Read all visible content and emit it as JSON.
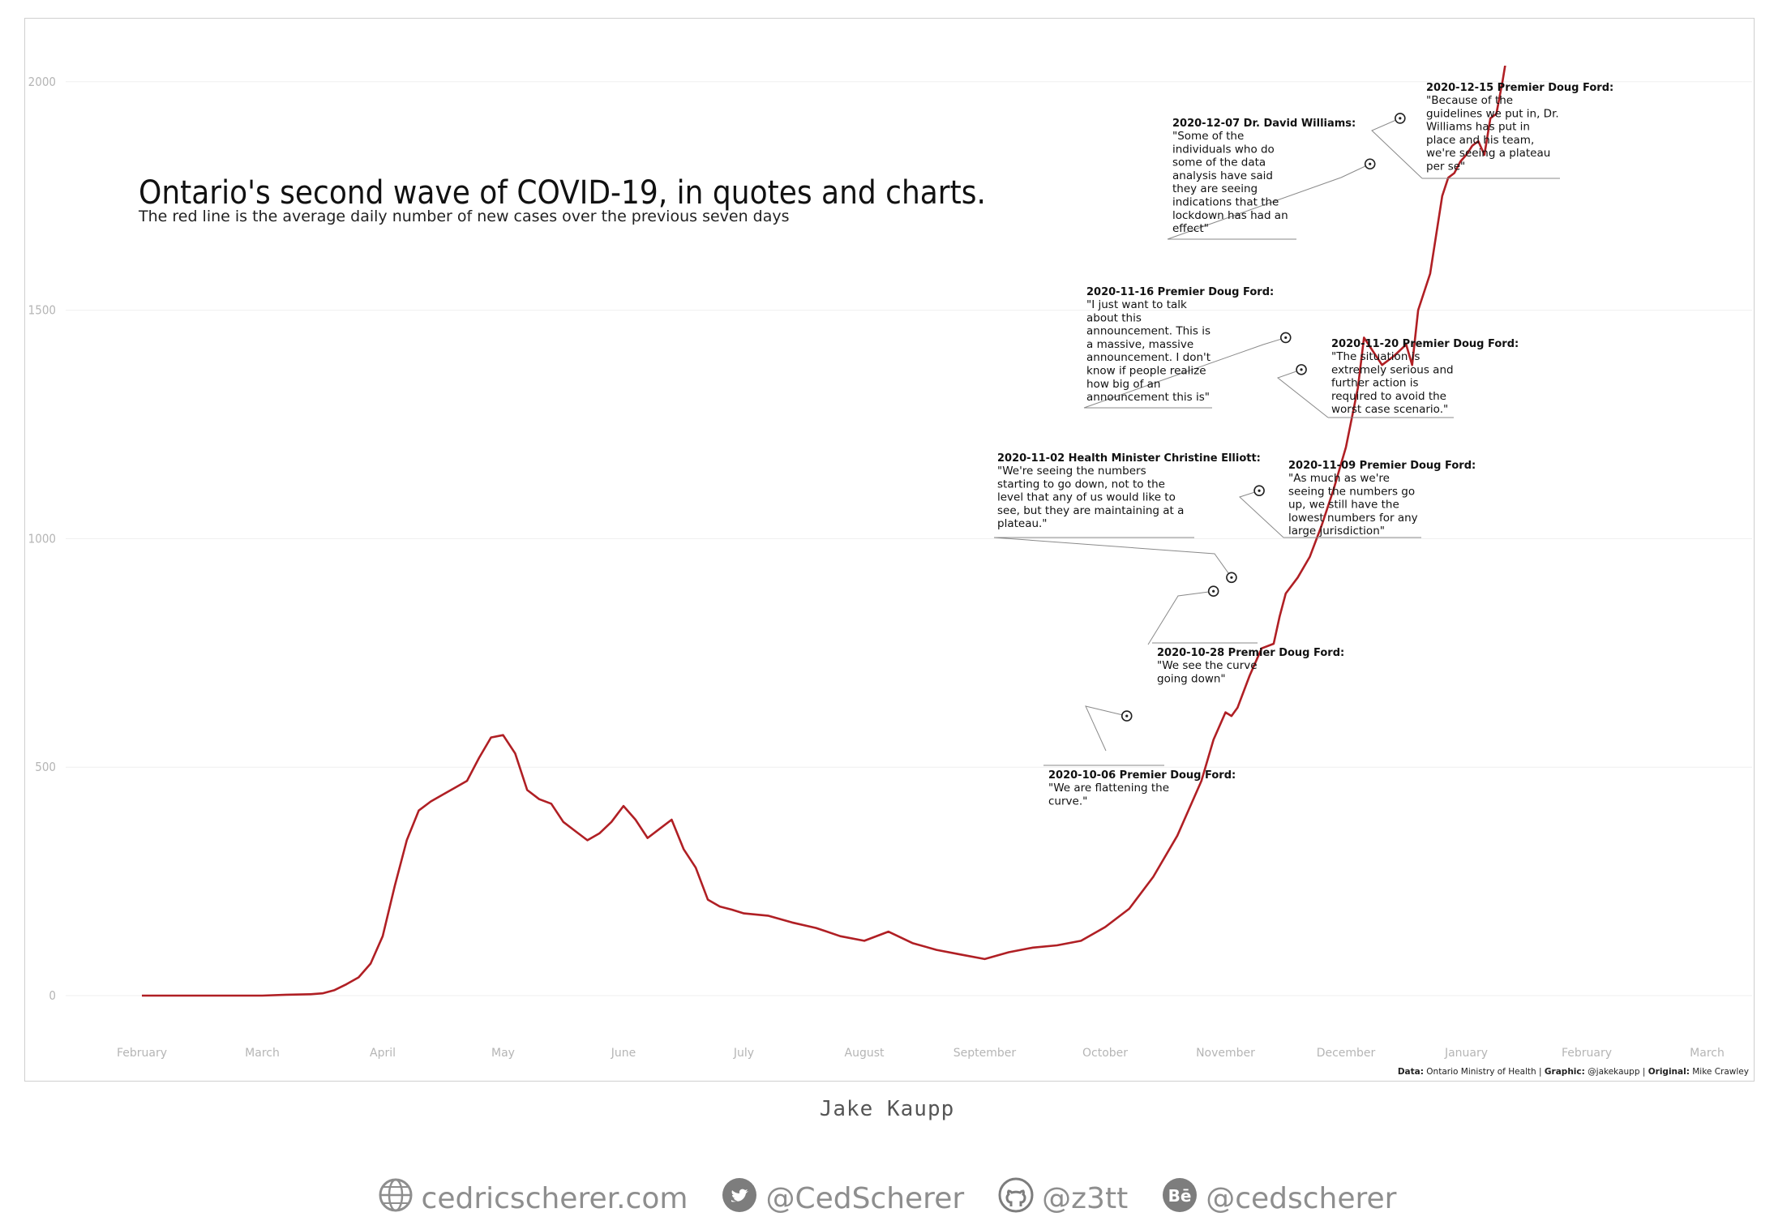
{
  "chart_data": {
    "type": "line",
    "title": "Ontario's second wave of COVID-19, in quotes and charts.",
    "subtitle": "The red line is the average daily number of new cases over the previous seven days",
    "line_color": "#b01f24",
    "y_ticks": [
      0,
      500,
      1000,
      1500,
      2000
    ],
    "ylim": [
      -130,
      2130
    ],
    "x_tick_labels": [
      "February",
      "March",
      "April",
      "May",
      "June",
      "July",
      "August",
      "September",
      "October",
      "November",
      "December",
      "January",
      "February",
      "March"
    ],
    "x_range_months": [
      0,
      13.45
    ],
    "grid": true,
    "series": [
      {
        "x": [
          0.0,
          0.5,
          1.0,
          1.2,
          1.4,
          1.5,
          1.6,
          1.7,
          1.8,
          1.9,
          2.0,
          2.1,
          2.2,
          2.3,
          2.4,
          2.5,
          2.6,
          2.7,
          2.8,
          2.9,
          3.0,
          3.1,
          3.2,
          3.3,
          3.4,
          3.5,
          3.6,
          3.7,
          3.8,
          3.9,
          4.0,
          4.1,
          4.2,
          4.3,
          4.4,
          4.5,
          4.6,
          4.7,
          4.8,
          4.9,
          5.0,
          5.2,
          5.4,
          5.6,
          5.8,
          6.0,
          6.2,
          6.4,
          6.6,
          6.8,
          7.0,
          7.2,
          7.4,
          7.6,
          7.8,
          8.0,
          8.2,
          8.4,
          8.6,
          8.8,
          8.9,
          9.0,
          9.05,
          9.1,
          9.2,
          9.3,
          9.4,
          9.45,
          9.5,
          9.6,
          9.7,
          9.8,
          9.9,
          10.0,
          10.1,
          10.15,
          10.2,
          10.3,
          10.4,
          10.5,
          10.55,
          10.6,
          10.7,
          10.8,
          10.85,
          10.9,
          10.95,
          11.0,
          11.05,
          11.1,
          11.15,
          11.2,
          11.25,
          11.3,
          11.35,
          11.4,
          11.45,
          11.5,
          11.55
        ],
        "y": [
          0,
          0,
          0,
          2,
          3,
          5,
          12,
          25,
          40,
          70,
          130,
          240,
          340,
          405,
          425,
          440,
          455,
          470,
          520,
          565,
          570,
          530,
          450,
          430,
          420,
          380,
          360,
          340,
          355,
          380,
          415,
          385,
          345,
          365,
          385,
          320,
          280,
          210,
          195,
          188,
          180,
          175,
          160,
          148,
          130,
          120,
          140,
          115,
          100,
          90,
          80,
          95,
          105,
          110,
          120,
          150,
          190,
          260,
          350,
          470,
          560,
          620,
          612,
          630,
          700,
          760,
          770,
          830,
          880,
          915,
          960,
          1030,
          1110,
          1200,
          1330,
          1440,
          1420,
          1380,
          1400,
          1425,
          1380,
          1500,
          1580,
          1750,
          1790,
          1800,
          1825,
          1840,
          1860,
          1870,
          1840,
          1920,
          1930,
          2000,
          2080,
          2150,
          2200,
          2250,
          2300
        ]
      }
    ],
    "annotations": [
      {
        "date": "2020-10-06",
        "speaker": "Premier Doug Ford:",
        "head": "2020-10-06 Premier Doug Ford:",
        "lines": [
          "\"We are flattening the",
          "curve.\""
        ],
        "x": 8.18,
        "y": 612
      },
      {
        "date": "2020-10-28",
        "speaker": "Premier Doug Ford:",
        "head": "2020-10-28 Premier Doug Ford:",
        "lines": [
          "\"We see the curve",
          "going down\""
        ],
        "x": 8.9,
        "y": 885
      },
      {
        "date": "2020-11-02",
        "speaker": "Health Minister Christine Elliott:",
        "head": "2020-11-02 Health Minister Christine Elliott:",
        "lines": [
          "\"We're seeing the numbers",
          "starting to go down, not to the",
          "level that any of us would like to",
          "see, but they are maintaining at a",
          "plateau.\""
        ],
        "x": 9.05,
        "y": 915
      },
      {
        "date": "2020-11-09",
        "speaker": "Premier Doug Ford:",
        "head": "2020-11-09 Premier Doug Ford:",
        "lines": [
          "\"As much as we're",
          "seeing the numbers go",
          "up, we still have the",
          "lowest numbers for any",
          "large jurisdiction\""
        ],
        "x": 9.28,
        "y": 1105
      },
      {
        "date": "2020-11-16",
        "speaker": "Premier Doug Ford:",
        "head": "2020-11-16 Premier Doug Ford:",
        "lines": [
          "\"I just want to talk",
          "about this",
          "announcement. This is",
          "a massive, massive",
          "announcement. I don't",
          "know if people realize",
          "how big of an",
          "announcement this is\""
        ],
        "x": 9.5,
        "y": 1440
      },
      {
        "date": "2020-11-20",
        "speaker": "Premier Doug Ford:",
        "head": "2020-11-20 Premier Doug Ford:",
        "lines": [
          "\"The situation is",
          "extremely serious and",
          "further action is",
          "required to avoid the",
          "worst case scenario.\""
        ],
        "x": 9.63,
        "y": 1370
      },
      {
        "date": "2020-12-07",
        "speaker": "Dr. David Williams:",
        "head": "2020-12-07 Dr. David Williams:",
        "lines": [
          "\"Some of the",
          "individuals who do",
          "some of the data",
          "analysis have said",
          "they are seeing",
          "indications that the",
          "lockdown has had an",
          "effect\""
        ],
        "x": 10.2,
        "y": 1820
      },
      {
        "date": "2020-12-15",
        "speaker": "Premier Doug Ford:",
        "head": "2020-12-15 Premier Doug Ford:",
        "lines": [
          "\"Because of the",
          "guidelines we put in, Dr.",
          "Williams has put in",
          "place and his team,",
          "we're seeing a plateau",
          "per se\""
        ],
        "x": 10.45,
        "y": 1920
      }
    ],
    "caption_parts": [
      {
        "text": "Data:",
        "bold": true
      },
      {
        "text": " Ontario Ministry of Health | ",
        "bold": false
      },
      {
        "text": "Graphic:",
        "bold": true
      },
      {
        "text": " @jakekaupp | ",
        "bold": false
      },
      {
        "text": "Original:",
        "bold": true
      },
      {
        "text": " Mike Crawley",
        "bold": false
      }
    ]
  },
  "author": "Jake Kaupp",
  "socials": [
    {
      "icon": "globe-icon",
      "label": "cedricscherer.com"
    },
    {
      "icon": "twitter-icon",
      "label": "@CedScherer"
    },
    {
      "icon": "github-icon",
      "label": "@z3tt"
    },
    {
      "icon": "behance-icon",
      "label": "@cedscherer"
    }
  ]
}
